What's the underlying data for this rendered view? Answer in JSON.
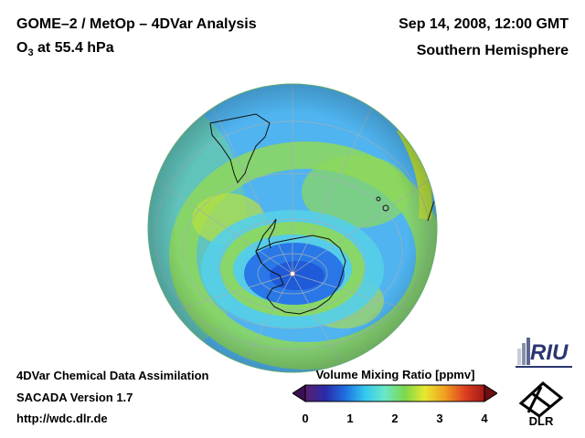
{
  "header": {
    "title": "GOME–2 / MetOp – 4DVar Analysis",
    "species_main": "O",
    "species_sub": "3",
    "species_rest": " at 55.4 hPa",
    "date": "Sep 14, 2008, 12:00 GMT",
    "hemisphere": "Southern Hemisphere"
  },
  "footer": {
    "line1": "4DVar Chemical Data Assimilation",
    "line2": "SACADA Version 1.7",
    "line3": "http://wdc.dlr.de"
  },
  "colorbar": {
    "title": "Volume Mixing Ratio [ppmv]",
    "ticks": [
      "0",
      "1",
      "2",
      "3",
      "4"
    ],
    "min": 0,
    "max": 4,
    "stops": [
      "#5a1f6e",
      "#2a2aa8",
      "#1f6fe0",
      "#33c8f0",
      "#6ae8c8",
      "#7bd84a",
      "#e8e830",
      "#f0a020",
      "#e04020",
      "#a01818"
    ]
  },
  "logos": {
    "riu_text": "RIU",
    "dlr_text": "DLR"
  },
  "colors": {
    "ocean_blue": "#4fb4f0",
    "band_green": "#8ed85a",
    "vortex_blue": "#2a78e8",
    "edge_yellow": "#d8d838"
  }
}
